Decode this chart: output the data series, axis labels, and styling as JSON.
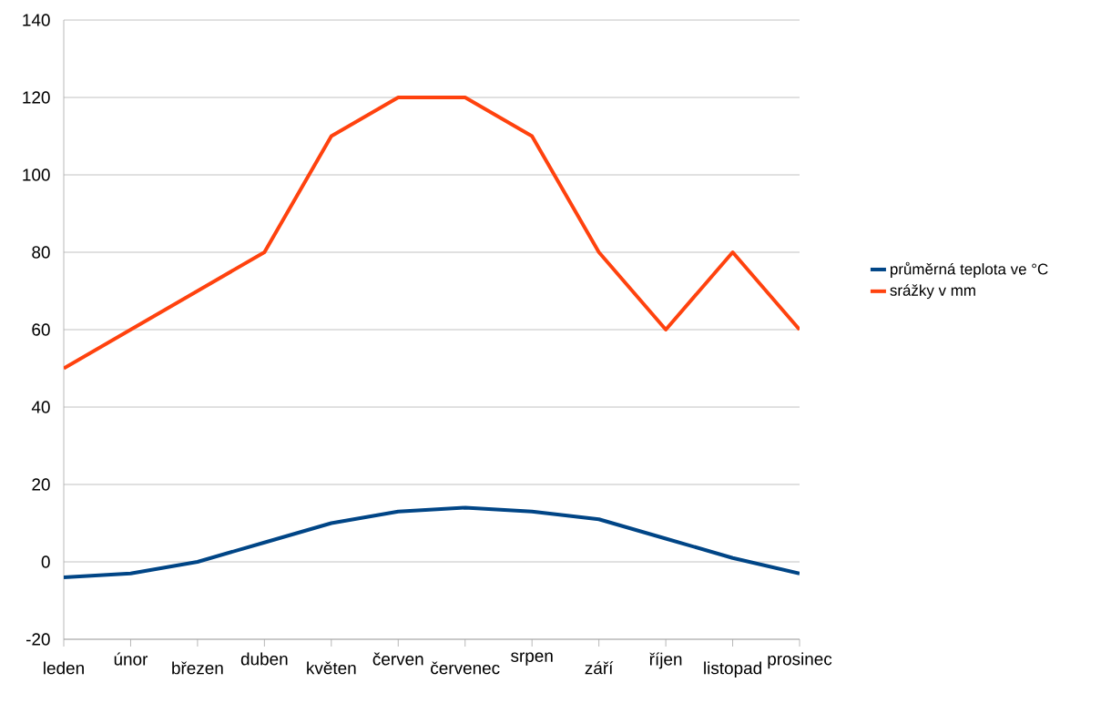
{
  "chart_data": {
    "type": "line",
    "categories": [
      "leden",
      "únor",
      "březen",
      "duben",
      "květen",
      "červen",
      "červenec",
      "srpen",
      "září",
      "říjen",
      "listopad",
      "prosinec"
    ],
    "series": [
      {
        "name": "průměrná teplota ve °C",
        "color": "#004586",
        "values": [
          -4,
          -3,
          0,
          5,
          10,
          13,
          14,
          13,
          11,
          6,
          1,
          -3
        ]
      },
      {
        "name": "srážky v mm",
        "color": "#ff420e",
        "values": [
          50,
          60,
          70,
          80,
          110,
          120,
          120,
          110,
          80,
          60,
          80,
          60
        ]
      }
    ],
    "ylim": [
      -20,
      140
    ],
    "yticks": [
      -20,
      0,
      20,
      40,
      60,
      80,
      100,
      120,
      140
    ],
    "grid": "y",
    "legend": "right",
    "marker": "none",
    "line_style": "solid"
  }
}
